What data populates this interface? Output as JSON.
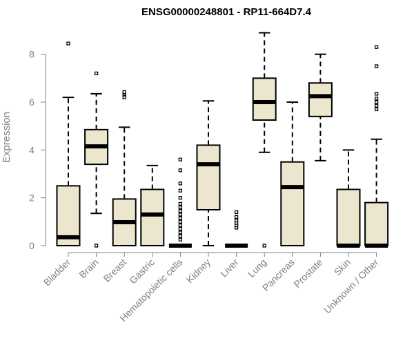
{
  "chart_data": {
    "type": "boxplot",
    "title": "ENSG00000248801 - RP11-664D7.4",
    "xlabel": "",
    "ylabel": "Expression",
    "ylim": [
      0,
      9
    ],
    "yticks": [
      0,
      2,
      4,
      6,
      8
    ],
    "box_fill": "#ede6cf",
    "categories": [
      "Bladder",
      "Brain",
      "Breast",
      "Gastric",
      "Hematopoietic cells",
      "Kidney",
      "Liver",
      "Lung",
      "Pancreas",
      "Prostate",
      "Skin",
      "Unknown / Other"
    ],
    "boxes": [
      {
        "min": 0,
        "q1": 0,
        "median": 0.35,
        "q3": 2.5,
        "max": 6.2,
        "outliers": [
          8.45
        ]
      },
      {
        "min": 1.35,
        "q1": 3.4,
        "median": 4.15,
        "q3": 4.85,
        "max": 6.35,
        "outliers": [
          7.2,
          0
        ]
      },
      {
        "min": 0,
        "q1": 0,
        "median": 0.98,
        "q3": 1.95,
        "max": 4.95,
        "outliers": [
          6.2,
          6.35,
          6.42
        ]
      },
      {
        "min": 0,
        "q1": 0,
        "median": 1.3,
        "q3": 2.35,
        "max": 3.35,
        "outliers": []
      },
      {
        "min": 0,
        "q1": 0,
        "median": 0,
        "q3": 0,
        "max": 0,
        "outliers": [
          0.25,
          0.4,
          0.55,
          0.7,
          0.85,
          1.0,
          1.15,
          1.3,
          1.45,
          1.6,
          1.75,
          2.0,
          2.3,
          2.6,
          3.15,
          3.6
        ]
      },
      {
        "min": 0,
        "q1": 1.5,
        "median": 3.4,
        "q3": 4.2,
        "max": 6.05,
        "outliers": []
      },
      {
        "min": 0,
        "q1": 0,
        "median": 0,
        "q3": 0,
        "max": 0,
        "outliers": [
          0.75,
          0.85,
          0.95,
          1.05,
          1.2,
          1.4
        ]
      },
      {
        "min": 3.9,
        "q1": 5.25,
        "median": 6.0,
        "q3": 7.0,
        "max": 8.9,
        "outliers": [
          0
        ]
      },
      {
        "min": 0,
        "q1": 0,
        "median": 2.45,
        "q3": 3.5,
        "max": 6.0,
        "outliers": []
      },
      {
        "min": 3.55,
        "q1": 5.4,
        "median": 6.25,
        "q3": 6.8,
        "max": 8.0,
        "outliers": []
      },
      {
        "min": 0,
        "q1": 0,
        "median": 0,
        "q3": 2.35,
        "max": 4.0,
        "outliers": []
      },
      {
        "min": 0,
        "q1": 0,
        "median": 0,
        "q3": 1.8,
        "max": 4.45,
        "outliers": [
          5.7,
          5.85,
          6.0,
          6.15,
          6.35,
          7.5,
          8.3
        ]
      }
    ]
  }
}
